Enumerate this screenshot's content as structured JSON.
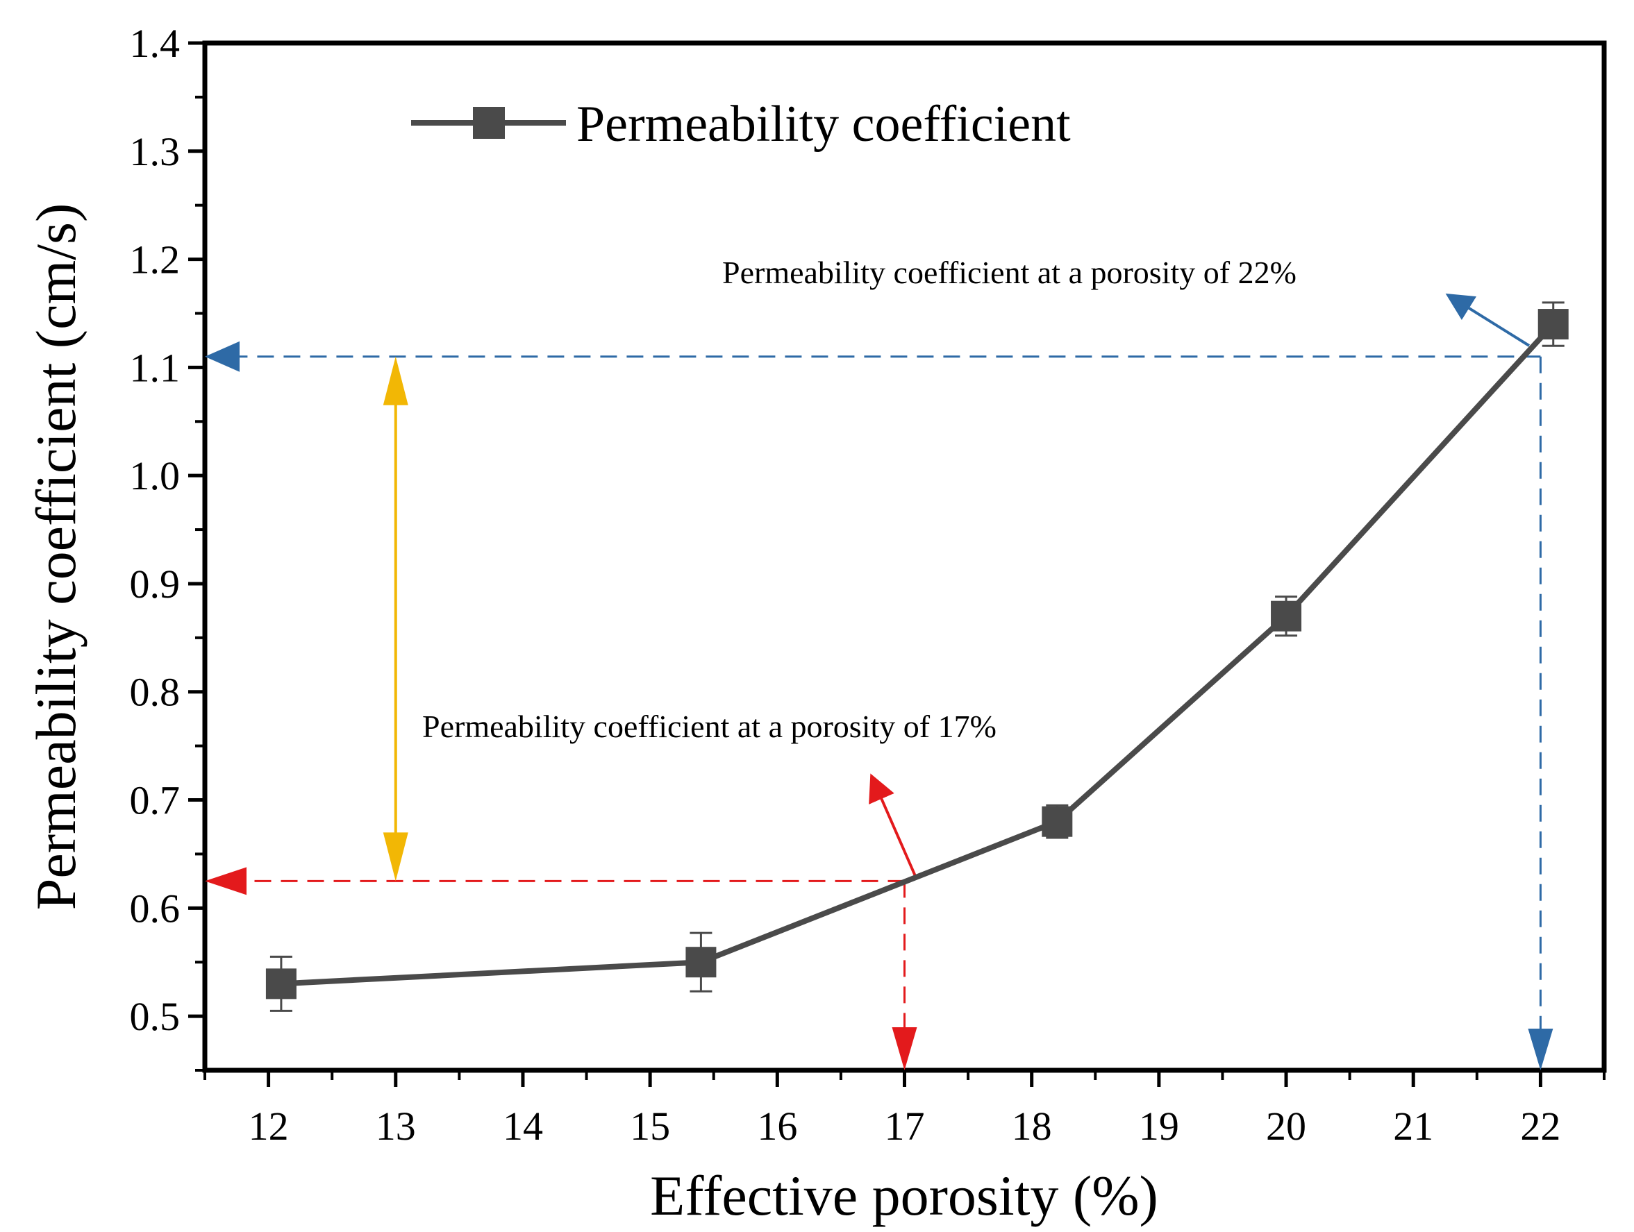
{
  "chart_data": {
    "type": "line",
    "title": "",
    "xlabel": "Effective porosity (%)",
    "ylabel": "Permeability coefficient (cm/s)",
    "xlim": [
      11.5,
      22.5
    ],
    "ylim": [
      0.45,
      1.4
    ],
    "xticks": [
      12,
      13,
      14,
      15,
      16,
      17,
      18,
      19,
      20,
      21,
      22
    ],
    "yticks": [
      0.5,
      0.6,
      0.7,
      0.8,
      0.9,
      1.0,
      1.1,
      1.2,
      1.3,
      1.4
    ],
    "xtick_labels": [
      "12",
      "13",
      "14",
      "15",
      "16",
      "17",
      "18",
      "19",
      "20",
      "21",
      "22"
    ],
    "ytick_labels": [
      "0.5",
      "0.6",
      "0.7",
      "0.8",
      "0.9",
      "1.0",
      "1.1",
      "1.2",
      "1.3",
      "1.4"
    ],
    "series": [
      {
        "name": "Permeability coefficient",
        "color": "#4a4a4a",
        "marker": "square",
        "x": [
          12.1,
          15.4,
          18.2,
          20.0,
          22.1
        ],
        "y": [
          0.53,
          0.55,
          0.68,
          0.87,
          1.14
        ],
        "error": [
          0.025,
          0.027,
          0.015,
          0.018,
          0.02
        ]
      }
    ],
    "legend": {
      "position": "top-left",
      "label": "Permeability coefficient"
    },
    "annotations": [
      {
        "text": "Permeability coefficient at a porosity of 22%",
        "color": "#2e6aa6",
        "point": [
          22.0,
          1.11
        ]
      },
      {
        "text": "Permeability coefficient at a porosity of 17%",
        "color": "#e31a1c",
        "point": [
          17.0,
          0.625
        ]
      }
    ],
    "range_arrow": {
      "color": "#f2b705",
      "x": 13.0,
      "y_from": 0.625,
      "y_to": 1.11
    }
  }
}
